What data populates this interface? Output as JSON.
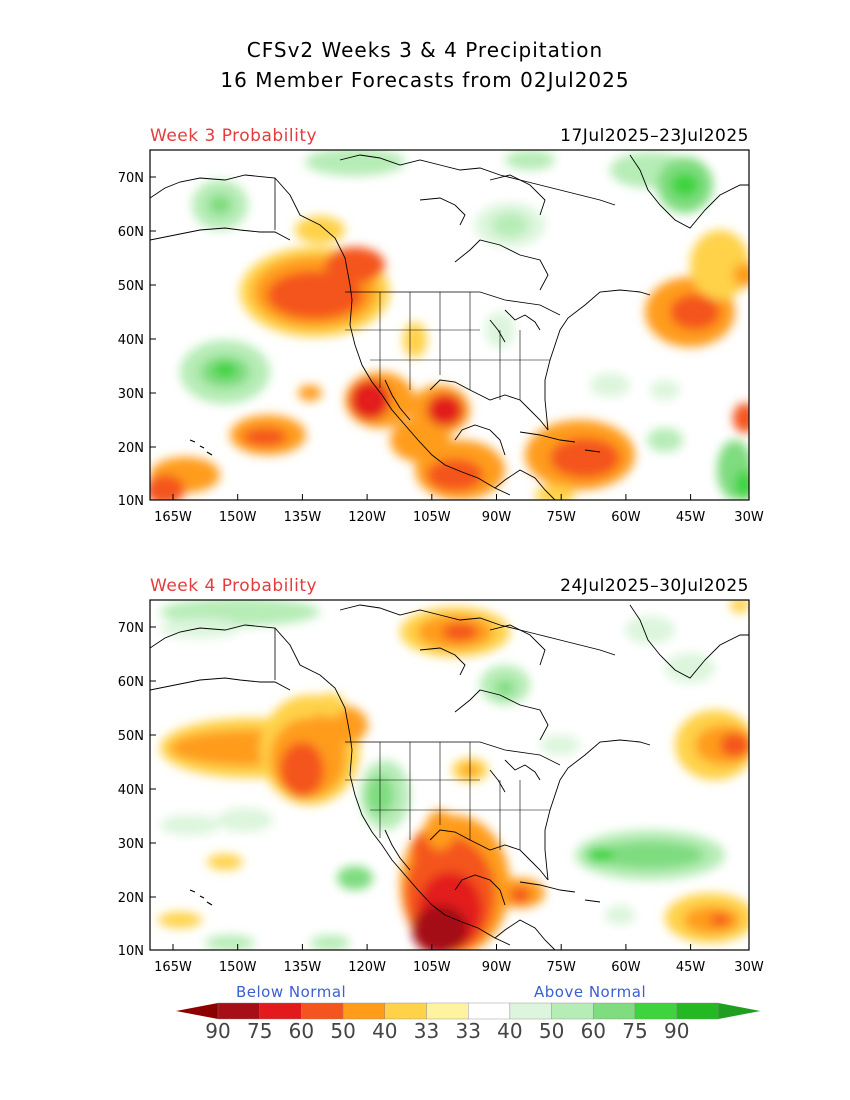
{
  "title": {
    "line1": "CFSv2 Weeks 3 & 4 Precipitation",
    "line2": "16 Member Forecasts from 02Jul2025"
  },
  "panels": [
    {
      "label": "Week 3 Probability",
      "dates": "17Jul2025–23Jul2025"
    },
    {
      "label": "Week 4 Probability",
      "dates": "24Jul2025–30Jul2025"
    }
  ],
  "axes": {
    "lat_ticks": [
      "70N",
      "60N",
      "50N",
      "40N",
      "30N",
      "20N",
      "10N"
    ],
    "lon_ticks": [
      "165W",
      "150W",
      "135W",
      "120W",
      "105W",
      "90W",
      "75W",
      "60W",
      "45W",
      "30W"
    ]
  },
  "legend": {
    "below_label": "Below Normal",
    "above_label": "Above Normal",
    "values": [
      "90",
      "75",
      "60",
      "50",
      "40",
      "33",
      "33",
      "40",
      "50",
      "60",
      "75",
      "90"
    ],
    "colors": [
      "#a50f15",
      "#e31a1c",
      "#f4551e",
      "#ff9c1a",
      "#ffd24a",
      "#fff3a0",
      "#ffffff",
      "#dcf5dc",
      "#b6ecb6",
      "#7fdc7f",
      "#3ed43e",
      "#22b922"
    ],
    "arrow_left_color": "#8c0000",
    "arrow_right_color": "#1f9e1f"
  }
}
